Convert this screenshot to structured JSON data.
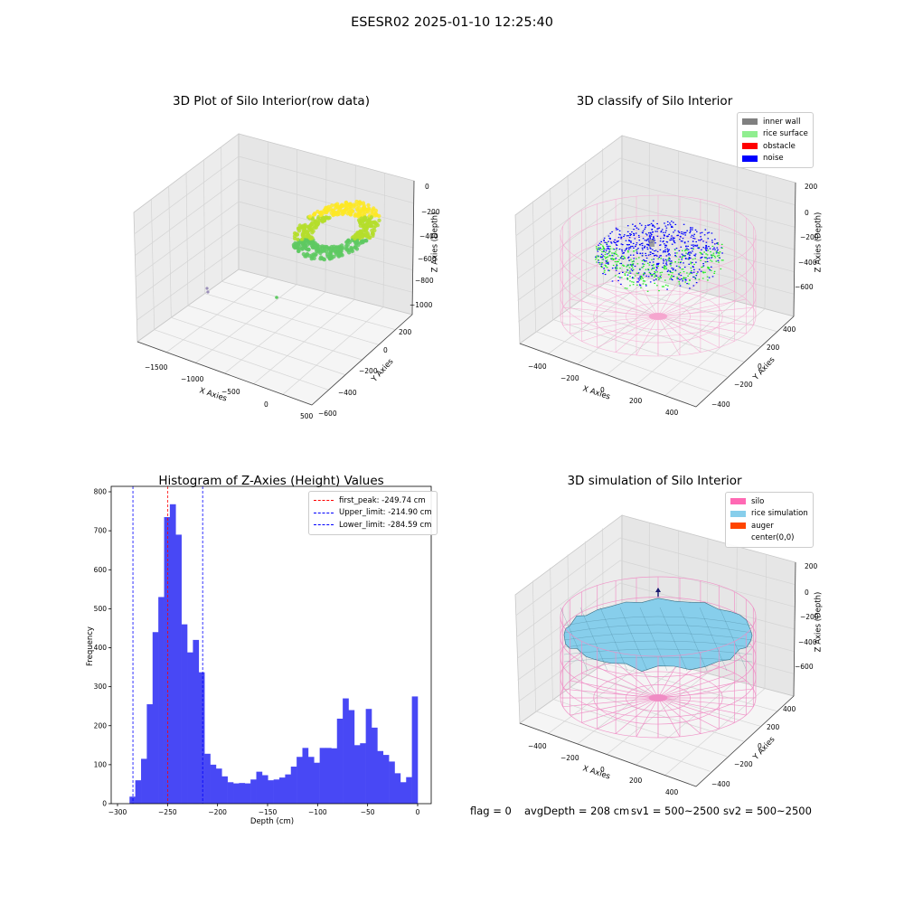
{
  "figure": {
    "suptitle": "ESESR02 2025-01-10 12:25:40",
    "footer": {
      "flag": "flag = 0",
      "avg_depth": "avgDepth = 208 cm",
      "sv1": "sv1 = 500~2500",
      "sv2": "sv2 = 500~2500"
    }
  },
  "chart_data": [
    {
      "type": "scatter",
      "projection": "3d",
      "title": "3D Plot of Silo Interior(row data)",
      "xlabel": "X Axies",
      "ylabel": "Y Axies",
      "zlabel": "Z Axies (Depth)",
      "xticks": [
        "−1500",
        "−1000",
        "−500",
        "0",
        "500"
      ],
      "yticks": [
        "−600",
        "−400",
        "−200",
        "0",
        "200"
      ],
      "zticks": [
        "−1000",
        "−800",
        "−600",
        "−400",
        "−200",
        "0"
      ],
      "colormap": [
        "#5ec962",
        "#b5de2b",
        "#fde725"
      ],
      "outlier_color": "#9b8fb8"
    },
    {
      "type": "scatter",
      "projection": "3d",
      "title": "3D classify of Silo Interior",
      "xlabel": "X Axies",
      "ylabel": "Y Axies",
      "zlabel": "Z Axies (Depth)",
      "xticks": [
        "−400",
        "−200",
        "0",
        "200",
        "400"
      ],
      "yticks": [
        "−400",
        "−200",
        "0",
        "200",
        "400"
      ],
      "zticks": [
        "−600",
        "−400",
        "−200",
        "0",
        "200"
      ],
      "legend": [
        {
          "label": "inner wall",
          "color": "#808080"
        },
        {
          "label": "rice surface",
          "color": "#90ee90"
        },
        {
          "label": "obstacle",
          "color": "#ff0000"
        },
        {
          "label": "noise",
          "color": "#0000ff"
        }
      ],
      "wire_color": "#f5a6cf",
      "legend_loc": "upper right"
    },
    {
      "type": "bar",
      "title": "Histogram of Z-Axies (Height) Values",
      "xlabel": "Depth (cm)",
      "ylabel": "Frequency",
      "xlim": [
        -300,
        0
      ],
      "ylim": [
        0,
        800
      ],
      "xticks": [
        -300,
        -250,
        -200,
        -150,
        -100,
        -50,
        0
      ],
      "yticks": [
        0,
        100,
        200,
        300,
        400,
        500,
        600,
        700,
        800
      ],
      "bin_start": -288,
      "bin_width": 5.76,
      "bar_color": "#4848f5",
      "values": [
        18,
        60,
        115,
        255,
        440,
        530,
        735,
        768,
        690,
        460,
        388,
        420,
        337,
        128,
        100,
        90,
        70,
        55,
        52,
        53,
        52,
        62,
        82,
        73,
        60,
        62,
        67,
        75,
        95,
        120,
        143,
        120,
        105,
        143,
        143,
        142,
        218,
        270,
        240,
        150,
        155,
        243,
        195,
        135,
        125,
        108,
        78,
        55,
        68,
        275
      ],
      "vlines": [
        {
          "label": "first_peak: -249.74 cm",
          "x": -249.74,
          "color": "#ff0000"
        },
        {
          "label": "Upper_limit: -214.90 cm",
          "x": -214.9,
          "color": "#0000ff"
        },
        {
          "label": "Lower_limit: -284.59 cm",
          "x": -284.59,
          "color": "#0000ff"
        }
      ],
      "legend_loc": "upper right"
    },
    {
      "type": "surface",
      "projection": "3d",
      "title": "3D simulation of Silo Interior",
      "xlabel": "X Axies",
      "ylabel": "Y Axies",
      "zlabel": "Z Axies (Depth)",
      "xticks": [
        "−400",
        "−200",
        "0",
        "200",
        "400"
      ],
      "yticks": [
        "−400",
        "−200",
        "0",
        "200",
        "400"
      ],
      "zticks": [
        "−600",
        "−400",
        "−200",
        "0",
        "200"
      ],
      "legend": [
        {
          "label": "silo",
          "color": "#ff69b4"
        },
        {
          "label": "rice simulation",
          "color": "#87ceeb"
        },
        {
          "label": "auger",
          "color": "#ff4500"
        },
        {
          "label": "center(0,0)",
          "color": "#ffffff"
        }
      ],
      "wire_color": "#f08cc4",
      "surface_color": "#87ceeb",
      "legend_loc": "upper right"
    }
  ]
}
